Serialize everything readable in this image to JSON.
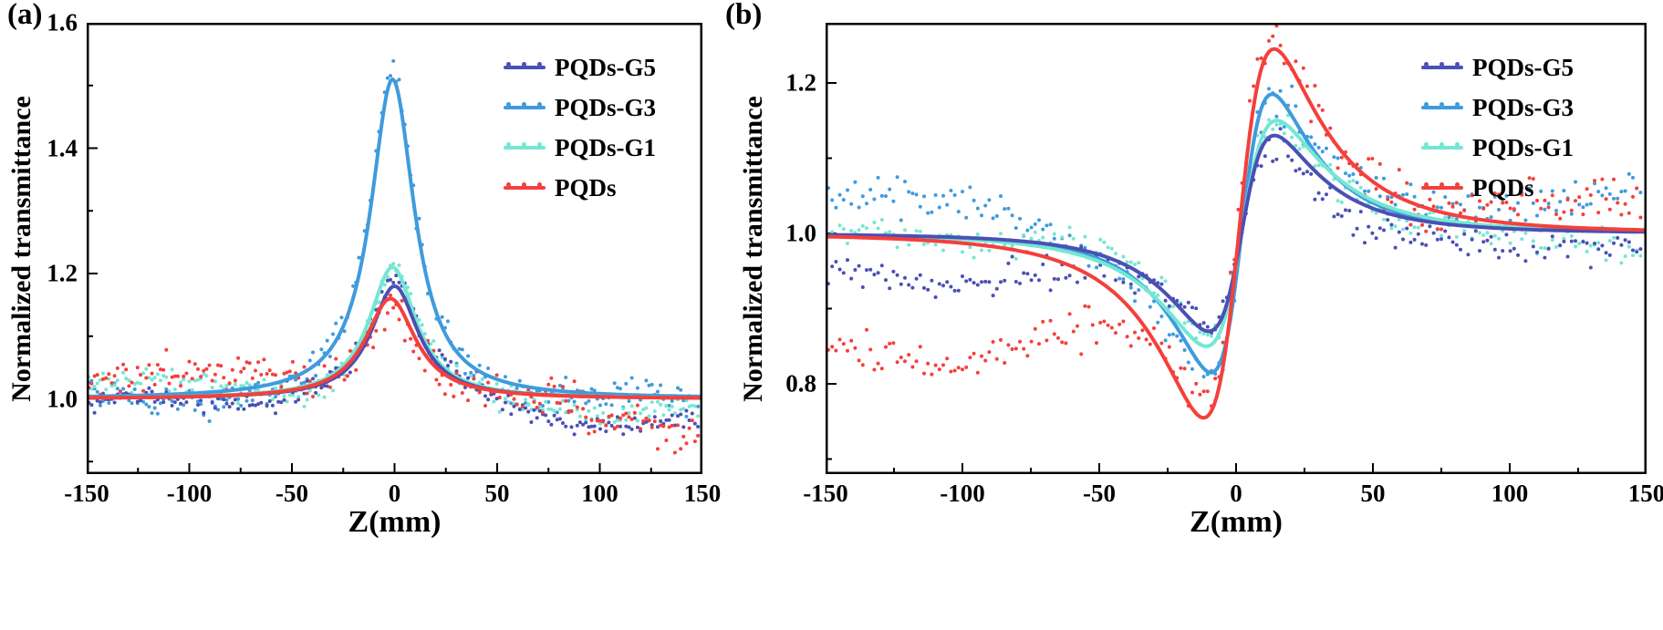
{
  "figure": {
    "background": "#ffffff",
    "text_color": "#000000"
  },
  "chart_data": [
    {
      "id": "a",
      "panel_label": "(a)",
      "type": "line+scatter",
      "xlabel": "Z(mm)",
      "ylabel": "Normalized transmittance",
      "xlim": [
        -150,
        150
      ],
      "ylim": [
        0.88,
        1.6
      ],
      "x_major_ticks": [
        -150,
        -100,
        -50,
        0,
        50,
        100,
        150
      ],
      "x_minor_step": 25,
      "y_major_ticks": [
        1.0,
        1.2,
        1.4,
        1.6
      ],
      "y_minor_step": 0.1,
      "grid": false,
      "legend": {
        "position": "top-right"
      },
      "curve_model": "open_aperture_lorentzian: T(z) = 1 + A/(1+((z-c)/w)^2)",
      "series": [
        {
          "name": "PQDs-G5",
          "color": "#4a50b4",
          "peak_T": 1.18,
          "A": 0.18,
          "w_mm": 14,
          "c_mm": 0,
          "noise_sd": 0.009,
          "edge_offset_left": -0.008,
          "edge_offset_right": -0.038
        },
        {
          "name": "PQDs-G3",
          "color": "#3f9bdc",
          "peak_T": 1.51,
          "A": 0.51,
          "w_mm": 13,
          "c_mm": -1,
          "noise_sd": 0.012,
          "edge_offset_left": 0.0,
          "edge_offset_right": -0.012
        },
        {
          "name": "PQDs-G1",
          "color": "#74e7d3",
          "peak_T": 1.21,
          "A": 0.21,
          "w_mm": 14,
          "c_mm": -1,
          "noise_sd": 0.009,
          "edge_offset_left": 0.018,
          "edge_offset_right": -0.028
        },
        {
          "name": "PQDs",
          "color": "#f4403c",
          "peak_T": 1.16,
          "A": 0.16,
          "w_mm": 15,
          "c_mm": -2,
          "noise_sd": 0.014,
          "edge_offset_left": 0.045,
          "edge_offset_right": -0.04
        }
      ]
    },
    {
      "id": "b",
      "panel_label": "(b)",
      "type": "line+scatter",
      "xlabel": "Z(mm)",
      "ylabel": "Normalized transmittance",
      "xlim": [
        -150,
        150
      ],
      "ylim": [
        0.68,
        1.28
      ],
      "x_major_ticks": [
        -150,
        -100,
        -50,
        0,
        50,
        100,
        150
      ],
      "x_minor_step": 25,
      "y_major_ticks": [
        0.8,
        1.0,
        1.2
      ],
      "y_minor_step": 0.1,
      "grid": false,
      "legend": {
        "position": "top-right"
      },
      "curve_model": "closed_aperture_zscan: T(z) = 1 + dT*g(x)/0.2028, g(x)=4x/((x²+9)(x²+1)), x=(z-c)/z0",
      "series": [
        {
          "name": "PQDs-G5",
          "color": "#4a50b4",
          "valley_T": 0.87,
          "peak_T": 1.13,
          "dT": 0.13,
          "z0_mm": 14,
          "c_mm": 2,
          "noise_sd": 0.011,
          "edge_offset_left": -0.058,
          "edge_offset_right": -0.028
        },
        {
          "name": "PQDs-G3",
          "color": "#3f9bdc",
          "valley_T": 0.815,
          "peak_T": 1.185,
          "dT": 0.185,
          "z0_mm": 13,
          "c_mm": 2,
          "noise_sd": 0.013,
          "edge_offset_left": 0.045,
          "edge_offset_right": 0.035
        },
        {
          "name": "PQDs-G1",
          "color": "#74e7d3",
          "valley_T": 0.85,
          "peak_T": 1.15,
          "dT": 0.15,
          "z0_mm": 15,
          "c_mm": 2,
          "noise_sd": 0.011,
          "edge_offset_left": 0.01,
          "edge_offset_right": -0.02
        },
        {
          "name": "PQDs",
          "color": "#f4403c",
          "valley_T": 0.755,
          "peak_T": 1.245,
          "dT": 0.245,
          "z0_mm": 15,
          "c_mm": 1,
          "noise_sd": 0.014,
          "edge_offset_left": -0.16,
          "edge_offset_right": 0.03
        }
      ]
    }
  ]
}
